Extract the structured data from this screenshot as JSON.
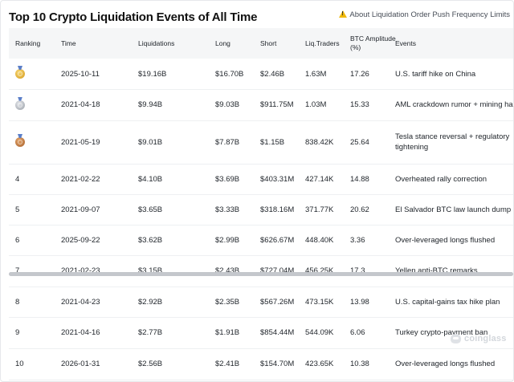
{
  "header": {
    "title": "Top 10 Crypto Liquidation Events of All Time",
    "about_link": "About Liquidation Order Push Frequency Limits"
  },
  "table": {
    "columns": [
      "Ranking",
      "Time",
      "Liquidations",
      "Long",
      "Short",
      "Liq.Traders",
      "BTC Amplitude (%)",
      "Events"
    ],
    "rows": [
      {
        "rank": "1",
        "medal": "gold-medal-icon",
        "time": "2025-10-11",
        "liquidations": "$19.16B",
        "long": "$16.70B",
        "short": "$2.46B",
        "traders": "1.63M",
        "amplitude": "17.26",
        "event": "U.S. tariff hike on China"
      },
      {
        "rank": "2",
        "medal": "silver-medal-icon",
        "time": "2021-04-18",
        "liquidations": "$9.94B",
        "long": "$9.03B",
        "short": "$911.75M",
        "traders": "1.03M",
        "amplitude": "15.33",
        "event": "AML crackdown rumor + mining ha"
      },
      {
        "rank": "3",
        "medal": "bronze-medal-icon",
        "time": "2021-05-19",
        "liquidations": "$9.01B",
        "long": "$7.87B",
        "short": "$1.15B",
        "traders": "838.42K",
        "amplitude": "25.64",
        "event": "Tesla stance reversal + regulatory tightening"
      },
      {
        "rank": "4",
        "time": "2021-02-22",
        "liquidations": "$4.10B",
        "long": "$3.69B",
        "short": "$403.31M",
        "traders": "427.14K",
        "amplitude": "14.88",
        "event": "Overheated rally correction"
      },
      {
        "rank": "5",
        "time": "2021-09-07",
        "liquidations": "$3.65B",
        "long": "$3.33B",
        "short": "$318.16M",
        "traders": "371.77K",
        "amplitude": "20.62",
        "event": "El Salvador BTC law launch dump"
      },
      {
        "rank": "6",
        "time": "2025-09-22",
        "liquidations": "$3.62B",
        "long": "$2.99B",
        "short": "$626.67M",
        "traders": "448.40K",
        "amplitude": "3.36",
        "event": "Over-leveraged longs flushed"
      },
      {
        "rank": "7",
        "time": "2021-02-23",
        "liquidations": "$3.15B",
        "long": "$2.43B",
        "short": "$727.04M",
        "traders": "456.25K",
        "amplitude": "17.3",
        "event": "Yellen anti-BTC remarks"
      },
      {
        "rank": "8",
        "time": "2021-04-23",
        "liquidations": "$2.92B",
        "long": "$2.35B",
        "short": "$567.26M",
        "traders": "473.15K",
        "amplitude": "13.98",
        "event": "U.S. capital-gains tax hike plan"
      },
      {
        "rank": "9",
        "time": "2021-04-16",
        "liquidations": "$2.77B",
        "long": "$1.91B",
        "short": "$854.44M",
        "traders": "544.09K",
        "amplitude": "6.06",
        "event": "Turkey crypto-payment ban"
      },
      {
        "rank": "10",
        "time": "2026-01-31",
        "liquidations": "$2.56B",
        "long": "$2.41B",
        "short": "$154.70M",
        "traders": "423.65K",
        "amplitude": "10.38",
        "event": "Over-leveraged longs flushed"
      }
    ]
  },
  "watermark": "coinglass",
  "colors": {
    "header_bg": "#f5f6f7",
    "warning": "#f0b90b",
    "gold": "#d49a1c",
    "silver": "#9aa0a8",
    "bronze": "#a8612c"
  }
}
